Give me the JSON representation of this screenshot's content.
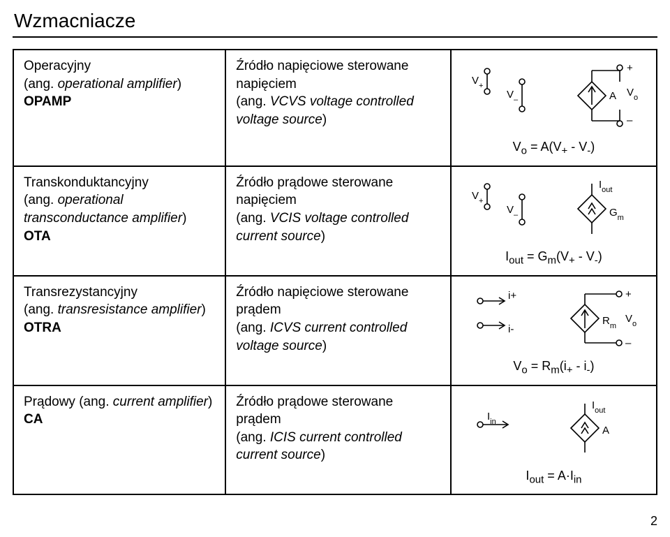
{
  "title": "Wzmacniacze",
  "page_number": "2",
  "colors": {
    "stroke": "#000000",
    "bg": "#ffffff"
  },
  "rows": [
    {
      "name_pl": "Operacyjny",
      "name_en_prefix": "(ang. ",
      "name_en": "operational amplifier",
      "name_en_suffix": ")",
      "abbr": "OPAMP",
      "src_pl": "Źródło napięciowe sterowane napięciem",
      "src_en_prefix": "(ang. ",
      "src_en": "VCVS voltage controlled voltage source",
      "src_en_suffix": ")",
      "formula_html": "V<sub>o</sub> = A(V<sub>+</sub> - V<sub>-</sub>)"
    },
    {
      "name_pl": "Transkonduktancyjny",
      "name_en_prefix": "(ang. ",
      "name_en": "operational transconductance amplifier",
      "name_en_suffix": ")",
      "abbr": "OTA",
      "src_pl": "Źródło prądowe sterowane napięciem",
      "src_en_prefix": "(ang. ",
      "src_en": "VCIS voltage controlled current source",
      "src_en_suffix": ")",
      "formula_html": "I<sub>out</sub> = G<sub>m</sub>(V<sub>+</sub> - V<sub>-</sub>)"
    },
    {
      "name_pl": "Transrezystancyjny",
      "name_en_prefix": "(ang. ",
      "name_en": "transresistance amplifier",
      "name_en_suffix": ")",
      "abbr": "OTRA",
      "src_pl": "Źródło napięciowe sterowane prądem",
      "src_en_prefix": "(ang. ",
      "src_en": "ICVS current controlled voltage source",
      "src_en_suffix": ")",
      "formula_html": "V<sub>o</sub> = R<sub>m</sub>(i<sub>+</sub> - i<sub>-</sub>)"
    },
    {
      "name_pl_prefix": "Prądowy ",
      "name_en_prefix": "(ang. ",
      "name_en": "current amplifier",
      "name_en_suffix": ")",
      "abbr": "CA",
      "src_pl": "Źródło prądowe sterowane prądem",
      "src_en_prefix": "(ang. ",
      "src_en": "ICIS current controlled current source",
      "src_en_suffix": ")",
      "formula_html": "I<sub>out</sub> = A·I<sub>in</sub>"
    }
  ],
  "labels": {
    "Vplus": "V",
    "Vplus_sub": "+",
    "Vminus": "V",
    "Vminus_sub": "–",
    "A": "A",
    "Gm": "G",
    "Gm_sub": "m",
    "Rm": "R",
    "Rm_sub": "m",
    "Vo_plus": "+",
    "Vo": "V",
    "Vo_sub": "o",
    "Vo_minus": "–",
    "Iout": "I",
    "Iout_sub": "out",
    "iplus": "i+",
    "iminus": "i-",
    "Iin": "I",
    "Iin_sub": "in"
  }
}
